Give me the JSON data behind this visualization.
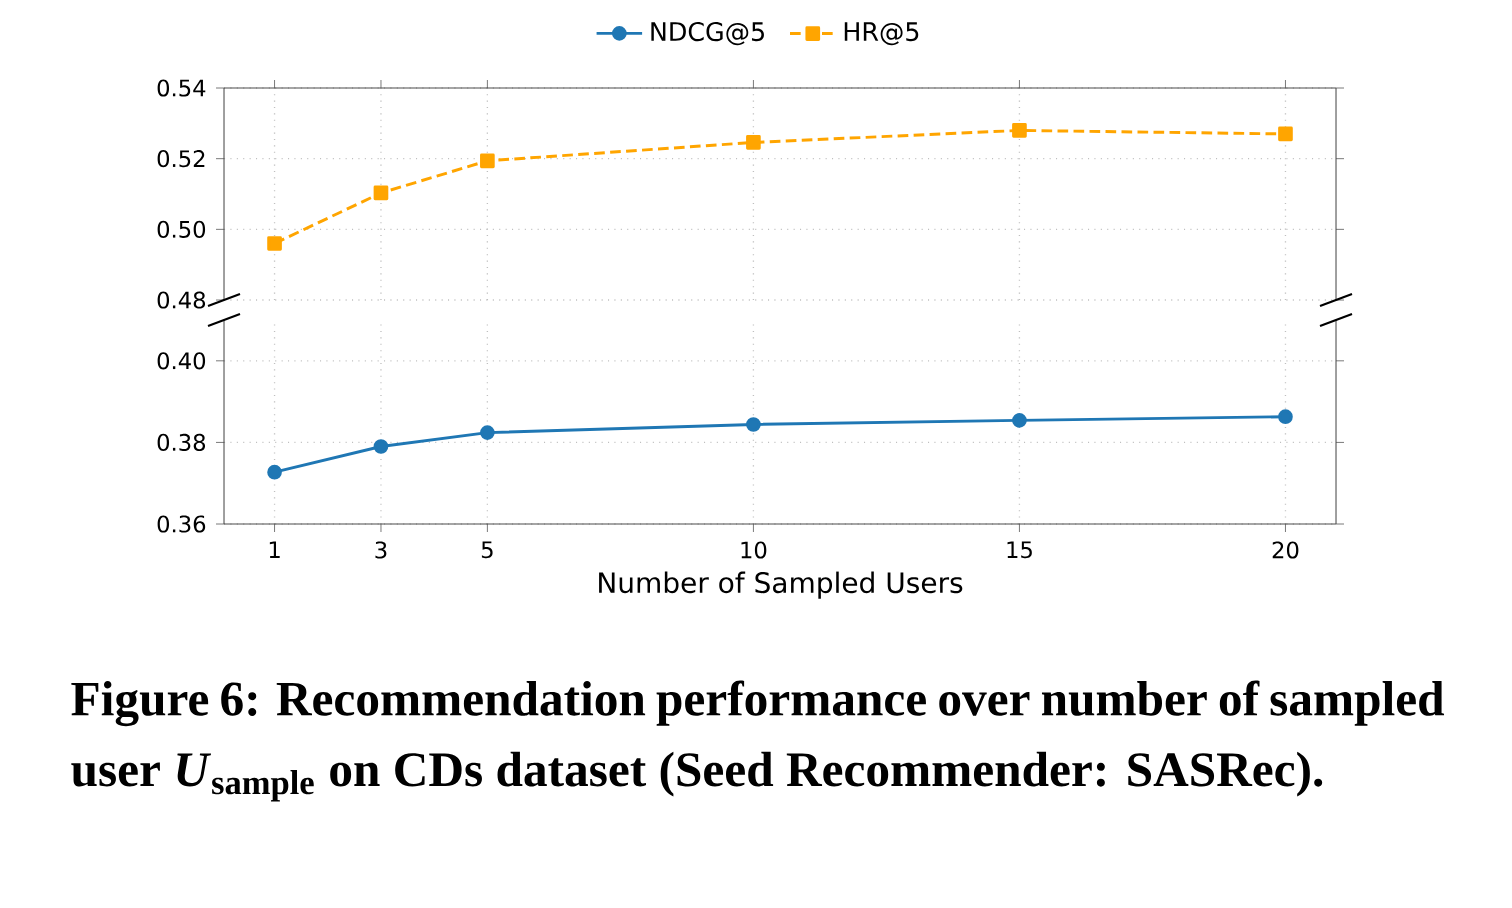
{
  "chart_data": [
    {
      "type": "line",
      "x": [
        1,
        3,
        5,
        10,
        15,
        20
      ],
      "xlim": [
        0.05,
        20.95
      ],
      "xticks": [
        1,
        3,
        5,
        10,
        15,
        20
      ],
      "ylim": [
        0.48,
        0.54
      ],
      "yticks": [
        {
          "value": 0.48,
          "label": "0.48"
        },
        {
          "value": 0.5,
          "label": "0.50"
        },
        {
          "value": 0.52,
          "label": "0.52"
        },
        {
          "value": 0.54,
          "label": "0.54"
        }
      ],
      "series": [
        {
          "name": "HR@5",
          "color": "#ffa500",
          "marker": "square",
          "line_style": "dashed",
          "values": [
            0.496,
            0.5103,
            0.5194,
            0.5246,
            0.528,
            0.527
          ]
        }
      ],
      "grid": true,
      "legend": "top",
      "tick_labels": "y"
    },
    {
      "type": "line",
      "x": [
        1,
        3,
        5,
        10,
        15,
        20
      ],
      "xlim": [
        0.05,
        20.95
      ],
      "xticks": [
        1,
        3,
        5,
        10,
        15,
        20
      ],
      "ylim": [
        0.36,
        0.41
      ],
      "yticks": [
        {
          "value": 0.36,
          "label": "0.36"
        },
        {
          "value": 0.38,
          "label": "0.38"
        },
        {
          "value": 0.4,
          "label": "0.40"
        }
      ],
      "xlabel": "Number of Sampled Users",
      "series": [
        {
          "name": "NDCG@5",
          "color": "#1f77b4",
          "marker": "circle",
          "line_style": "solid",
          "values": [
            0.3727,
            0.379,
            0.3824,
            0.3844,
            0.3854,
            0.3863
          ]
        }
      ],
      "grid": true,
      "legend": "top",
      "annotations": [
        "Figure 6: Recommendation performance over number of sampled user *U*$_{sample}$ on CDs dataset (Seed Recommender: SASRec)."
      ]
    }
  ]
}
